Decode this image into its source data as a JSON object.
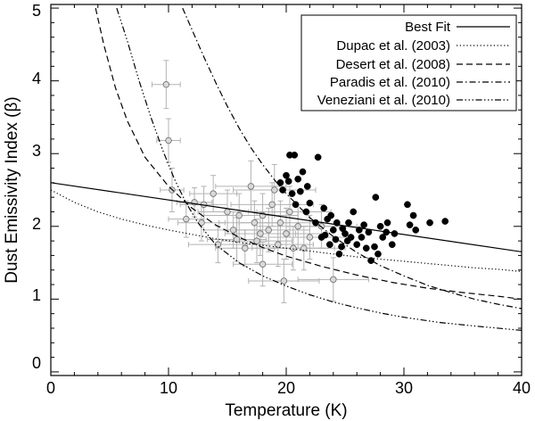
{
  "chart_data": {
    "type": "scatter",
    "xlabel": "Temperature (K)",
    "ylabel": "Dust Emissivity Index (β)",
    "xlim": [
      0,
      40
    ],
    "ylim": [
      -0.05,
      5.05
    ],
    "xticks": [
      0,
      10,
      20,
      30,
      40
    ],
    "yticks": [
      0,
      1,
      2,
      3,
      4,
      5
    ],
    "legend_position": "top-right",
    "legend": [
      {
        "label": "Best Fit",
        "style": "solid"
      },
      {
        "label": "Dupac et al. (2003)",
        "style": "dotted"
      },
      {
        "label": "Desert et al. (2008)",
        "style": "dashed"
      },
      {
        "label": "Paradis et al. (2010)",
        "style": "dashdot"
      },
      {
        "label": "Veneziani et al. (2010)",
        "style": "dashdotdotdot"
      }
    ],
    "lines": [
      {
        "name": "Best Fit",
        "style": "solid",
        "points": [
          [
            0,
            2.6
          ],
          [
            40,
            1.65
          ]
        ]
      },
      {
        "name": "Dupac et al. (2003)",
        "style": "dotted",
        "points": [
          [
            0,
            2.5
          ],
          [
            2,
            2.33
          ],
          [
            4,
            2.2
          ],
          [
            6,
            2.1
          ],
          [
            8,
            2.02
          ],
          [
            10,
            1.95
          ],
          [
            12,
            1.89
          ],
          [
            14,
            1.83
          ],
          [
            16,
            1.78
          ],
          [
            18,
            1.74
          ],
          [
            20,
            1.7
          ],
          [
            22,
            1.66
          ],
          [
            24,
            1.62
          ],
          [
            26,
            1.58
          ],
          [
            28,
            1.55
          ],
          [
            30,
            1.52
          ],
          [
            32,
            1.49
          ],
          [
            34,
            1.46
          ],
          [
            36,
            1.43
          ],
          [
            38,
            1.41
          ],
          [
            40,
            1.38
          ]
        ]
      },
      {
        "name": "Desert et al. (2008)",
        "style": "dashed",
        "points": [
          [
            3.8,
            5.0
          ],
          [
            4.5,
            4.5
          ],
          [
            5.5,
            3.9
          ],
          [
            6.5,
            3.45
          ],
          [
            8,
            2.95
          ],
          [
            10,
            2.55
          ],
          [
            12,
            2.25
          ],
          [
            14,
            2.02
          ],
          [
            16,
            1.85
          ],
          [
            18,
            1.71
          ],
          [
            20,
            1.59
          ],
          [
            23,
            1.45
          ],
          [
            26,
            1.33
          ],
          [
            29,
            1.23
          ],
          [
            32,
            1.15
          ],
          [
            35,
            1.09
          ],
          [
            38,
            1.04
          ],
          [
            40,
            1.0
          ]
        ]
      },
      {
        "name": "Paradis et al. (2010)",
        "style": "dashdot",
        "points": [
          [
            11.2,
            5.0
          ],
          [
            12,
            4.7
          ],
          [
            13,
            4.33
          ],
          [
            14,
            3.98
          ],
          [
            15,
            3.65
          ],
          [
            16,
            3.35
          ],
          [
            17,
            3.08
          ],
          [
            18,
            2.85
          ],
          [
            19,
            2.64
          ],
          [
            20,
            2.45
          ],
          [
            22,
            2.12
          ],
          [
            24,
            1.86
          ],
          [
            26,
            1.64
          ],
          [
            28,
            1.46
          ],
          [
            30,
            1.32
          ],
          [
            32,
            1.19
          ],
          [
            34,
            1.09
          ],
          [
            36,
            1.0
          ],
          [
            38,
            0.93
          ],
          [
            40,
            0.87
          ]
        ]
      },
      {
        "name": "Veneziani et al. (2010)",
        "style": "dashdotdotdot",
        "points": [
          [
            5.6,
            5.0
          ],
          [
            6.5,
            4.55
          ],
          [
            7.5,
            4.0
          ],
          [
            8.5,
            3.5
          ],
          [
            9.5,
            3.05
          ],
          [
            10.5,
            2.65
          ],
          [
            11.5,
            2.32
          ],
          [
            12.5,
            2.05
          ],
          [
            14,
            1.75
          ],
          [
            16,
            1.5
          ],
          [
            18,
            1.32
          ],
          [
            20,
            1.18
          ],
          [
            22,
            1.06
          ],
          [
            24,
            0.96
          ],
          [
            26,
            0.88
          ],
          [
            28,
            0.81
          ],
          [
            30,
            0.75
          ],
          [
            33,
            0.68
          ],
          [
            36,
            0.63
          ],
          [
            40,
            0.57
          ]
        ]
      }
    ],
    "series": [
      {
        "name": "open symbols (grey, with error bars)",
        "marker": "open-circle",
        "points": [
          {
            "x": 9.8,
            "y": 3.95,
            "xerr": 1.2,
            "yerr": 0.33
          },
          {
            "x": 10.0,
            "y": 3.18,
            "xerr": 1.0,
            "yerr": 0.3
          },
          {
            "x": 10.3,
            "y": 2.5,
            "xerr": 1.0,
            "yerr": 0.3
          },
          {
            "x": 11.5,
            "y": 2.1,
            "xerr": 1.5,
            "yerr": 0.25
          },
          {
            "x": 12.2,
            "y": 2.33,
            "xerr": 1.5,
            "yerr": 0.2
          },
          {
            "x": 13.0,
            "y": 2.3,
            "xerr": 2.0,
            "yerr": 0.25
          },
          {
            "x": 13.8,
            "y": 2.45,
            "xerr": 2.0,
            "yerr": 0.25
          },
          {
            "x": 14.2,
            "y": 1.75,
            "xerr": 2.5,
            "yerr": 0.25
          },
          {
            "x": 15.0,
            "y": 2.2,
            "xerr": 2.5,
            "yerr": 0.3
          },
          {
            "x": 15.5,
            "y": 1.95,
            "xerr": 2.5,
            "yerr": 0.25
          },
          {
            "x": 16.0,
            "y": 2.15,
            "xerr": 3.0,
            "yerr": 0.3
          },
          {
            "x": 16.5,
            "y": 1.7,
            "xerr": 2.5,
            "yerr": 0.25
          },
          {
            "x": 17.0,
            "y": 2.55,
            "xerr": 3.0,
            "yerr": 0.35
          },
          {
            "x": 17.3,
            "y": 2.05,
            "xerr": 3.0,
            "yerr": 0.3
          },
          {
            "x": 17.5,
            "y": 1.8,
            "xerr": 3.0,
            "yerr": 0.3
          },
          {
            "x": 18.0,
            "y": 2.15,
            "xerr": 3.0,
            "yerr": 0.3
          },
          {
            "x": 18.0,
            "y": 1.48,
            "xerr": 2.5,
            "yerr": 0.3
          },
          {
            "x": 18.5,
            "y": 1.95,
            "xerr": 3.5,
            "yerr": 0.3
          },
          {
            "x": 19.0,
            "y": 2.5,
            "xerr": 3.5,
            "yerr": 0.35
          },
          {
            "x": 19.3,
            "y": 1.75,
            "xerr": 3.0,
            "yerr": 0.3
          },
          {
            "x": 19.5,
            "y": 2.05,
            "xerr": 3.5,
            "yerr": 0.3
          },
          {
            "x": 19.8,
            "y": 1.25,
            "xerr": 3.0,
            "yerr": 0.3
          },
          {
            "x": 20.0,
            "y": 1.9,
            "xerr": 3.5,
            "yerr": 0.35
          },
          {
            "x": 20.3,
            "y": 2.2,
            "xerr": 3.5,
            "yerr": 0.35
          },
          {
            "x": 20.6,
            "y": 1.7,
            "xerr": 3.5,
            "yerr": 0.3
          },
          {
            "x": 21.0,
            "y": 2.0,
            "xerr": 3.5,
            "yerr": 0.3
          },
          {
            "x": 21.5,
            "y": 1.7,
            "xerr": 3.5,
            "yerr": 0.3
          },
          {
            "x": 22.0,
            "y": 1.85,
            "xerr": 3.5,
            "yerr": 0.3
          },
          {
            "x": 23.0,
            "y": 2.0,
            "xerr": 3.0,
            "yerr": 0.3
          },
          {
            "x": 24.0,
            "y": 1.27,
            "xerr": 3.0,
            "yerr": 0.3
          },
          {
            "x": 12.8,
            "y": 2.05,
            "xerr": 2.0,
            "yerr": 0.25
          },
          {
            "x": 15.8,
            "y": 1.82,
            "xerr": 2.5,
            "yerr": 0.3
          },
          {
            "x": 18.8,
            "y": 2.3,
            "xerr": 3.5,
            "yerr": 0.3
          },
          {
            "x": 17.8,
            "y": 1.9,
            "xerr": 3.0,
            "yerr": 0.3
          }
        ]
      },
      {
        "name": "filled symbols (black)",
        "marker": "filled-circle",
        "points": [
          {
            "x": 19.5,
            "y": 2.6
          },
          {
            "x": 19.7,
            "y": 2.5
          },
          {
            "x": 20.0,
            "y": 2.7
          },
          {
            "x": 20.2,
            "y": 2.62
          },
          {
            "x": 20.3,
            "y": 2.98
          },
          {
            "x": 20.5,
            "y": 2.45
          },
          {
            "x": 20.7,
            "y": 2.98
          },
          {
            "x": 20.8,
            "y": 2.3
          },
          {
            "x": 21.0,
            "y": 2.65
          },
          {
            "x": 21.2,
            "y": 2.48
          },
          {
            "x": 21.4,
            "y": 2.75
          },
          {
            "x": 21.7,
            "y": 2.2
          },
          {
            "x": 22.0,
            "y": 2.32
          },
          {
            "x": 22.5,
            "y": 2.05
          },
          {
            "x": 22.7,
            "y": 2.95
          },
          {
            "x": 23.0,
            "y": 1.85
          },
          {
            "x": 23.2,
            "y": 2.25
          },
          {
            "x": 23.5,
            "y": 2.1
          },
          {
            "x": 23.7,
            "y": 1.75
          },
          {
            "x": 23.8,
            "y": 2.15
          },
          {
            "x": 24.0,
            "y": 1.95
          },
          {
            "x": 24.2,
            "y": 1.82
          },
          {
            "x": 24.3,
            "y": 2.05
          },
          {
            "x": 24.5,
            "y": 1.62
          },
          {
            "x": 24.7,
            "y": 1.72
          },
          {
            "x": 25.0,
            "y": 1.9
          },
          {
            "x": 25.2,
            "y": 1.8
          },
          {
            "x": 25.3,
            "y": 2.05
          },
          {
            "x": 25.5,
            "y": 1.85
          },
          {
            "x": 25.7,
            "y": 2.2
          },
          {
            "x": 26.0,
            "y": 1.75
          },
          {
            "x": 26.2,
            "y": 1.95
          },
          {
            "x": 26.4,
            "y": 1.85
          },
          {
            "x": 26.6,
            "y": 2.02
          },
          {
            "x": 26.8,
            "y": 1.7
          },
          {
            "x": 27.0,
            "y": 1.92
          },
          {
            "x": 27.2,
            "y": 1.53
          },
          {
            "x": 27.5,
            "y": 1.72
          },
          {
            "x": 27.6,
            "y": 2.4
          },
          {
            "x": 27.8,
            "y": 1.62
          },
          {
            "x": 28.0,
            "y": 2.0
          },
          {
            "x": 28.2,
            "y": 1.85
          },
          {
            "x": 28.5,
            "y": 1.92
          },
          {
            "x": 28.6,
            "y": 2.05
          },
          {
            "x": 29.0,
            "y": 1.75
          },
          {
            "x": 29.2,
            "y": 1.9
          },
          {
            "x": 30.3,
            "y": 2.3
          },
          {
            "x": 30.5,
            "y": 2.02
          },
          {
            "x": 30.8,
            "y": 2.15
          },
          {
            "x": 31.0,
            "y": 1.95
          },
          {
            "x": 32.2,
            "y": 2.05
          },
          {
            "x": 33.5,
            "y": 2.07
          },
          {
            "x": 23.3,
            "y": 1.88
          },
          {
            "x": 24.8,
            "y": 1.97
          },
          {
            "x": 21.8,
            "y": 2.55
          }
        ]
      }
    ]
  }
}
